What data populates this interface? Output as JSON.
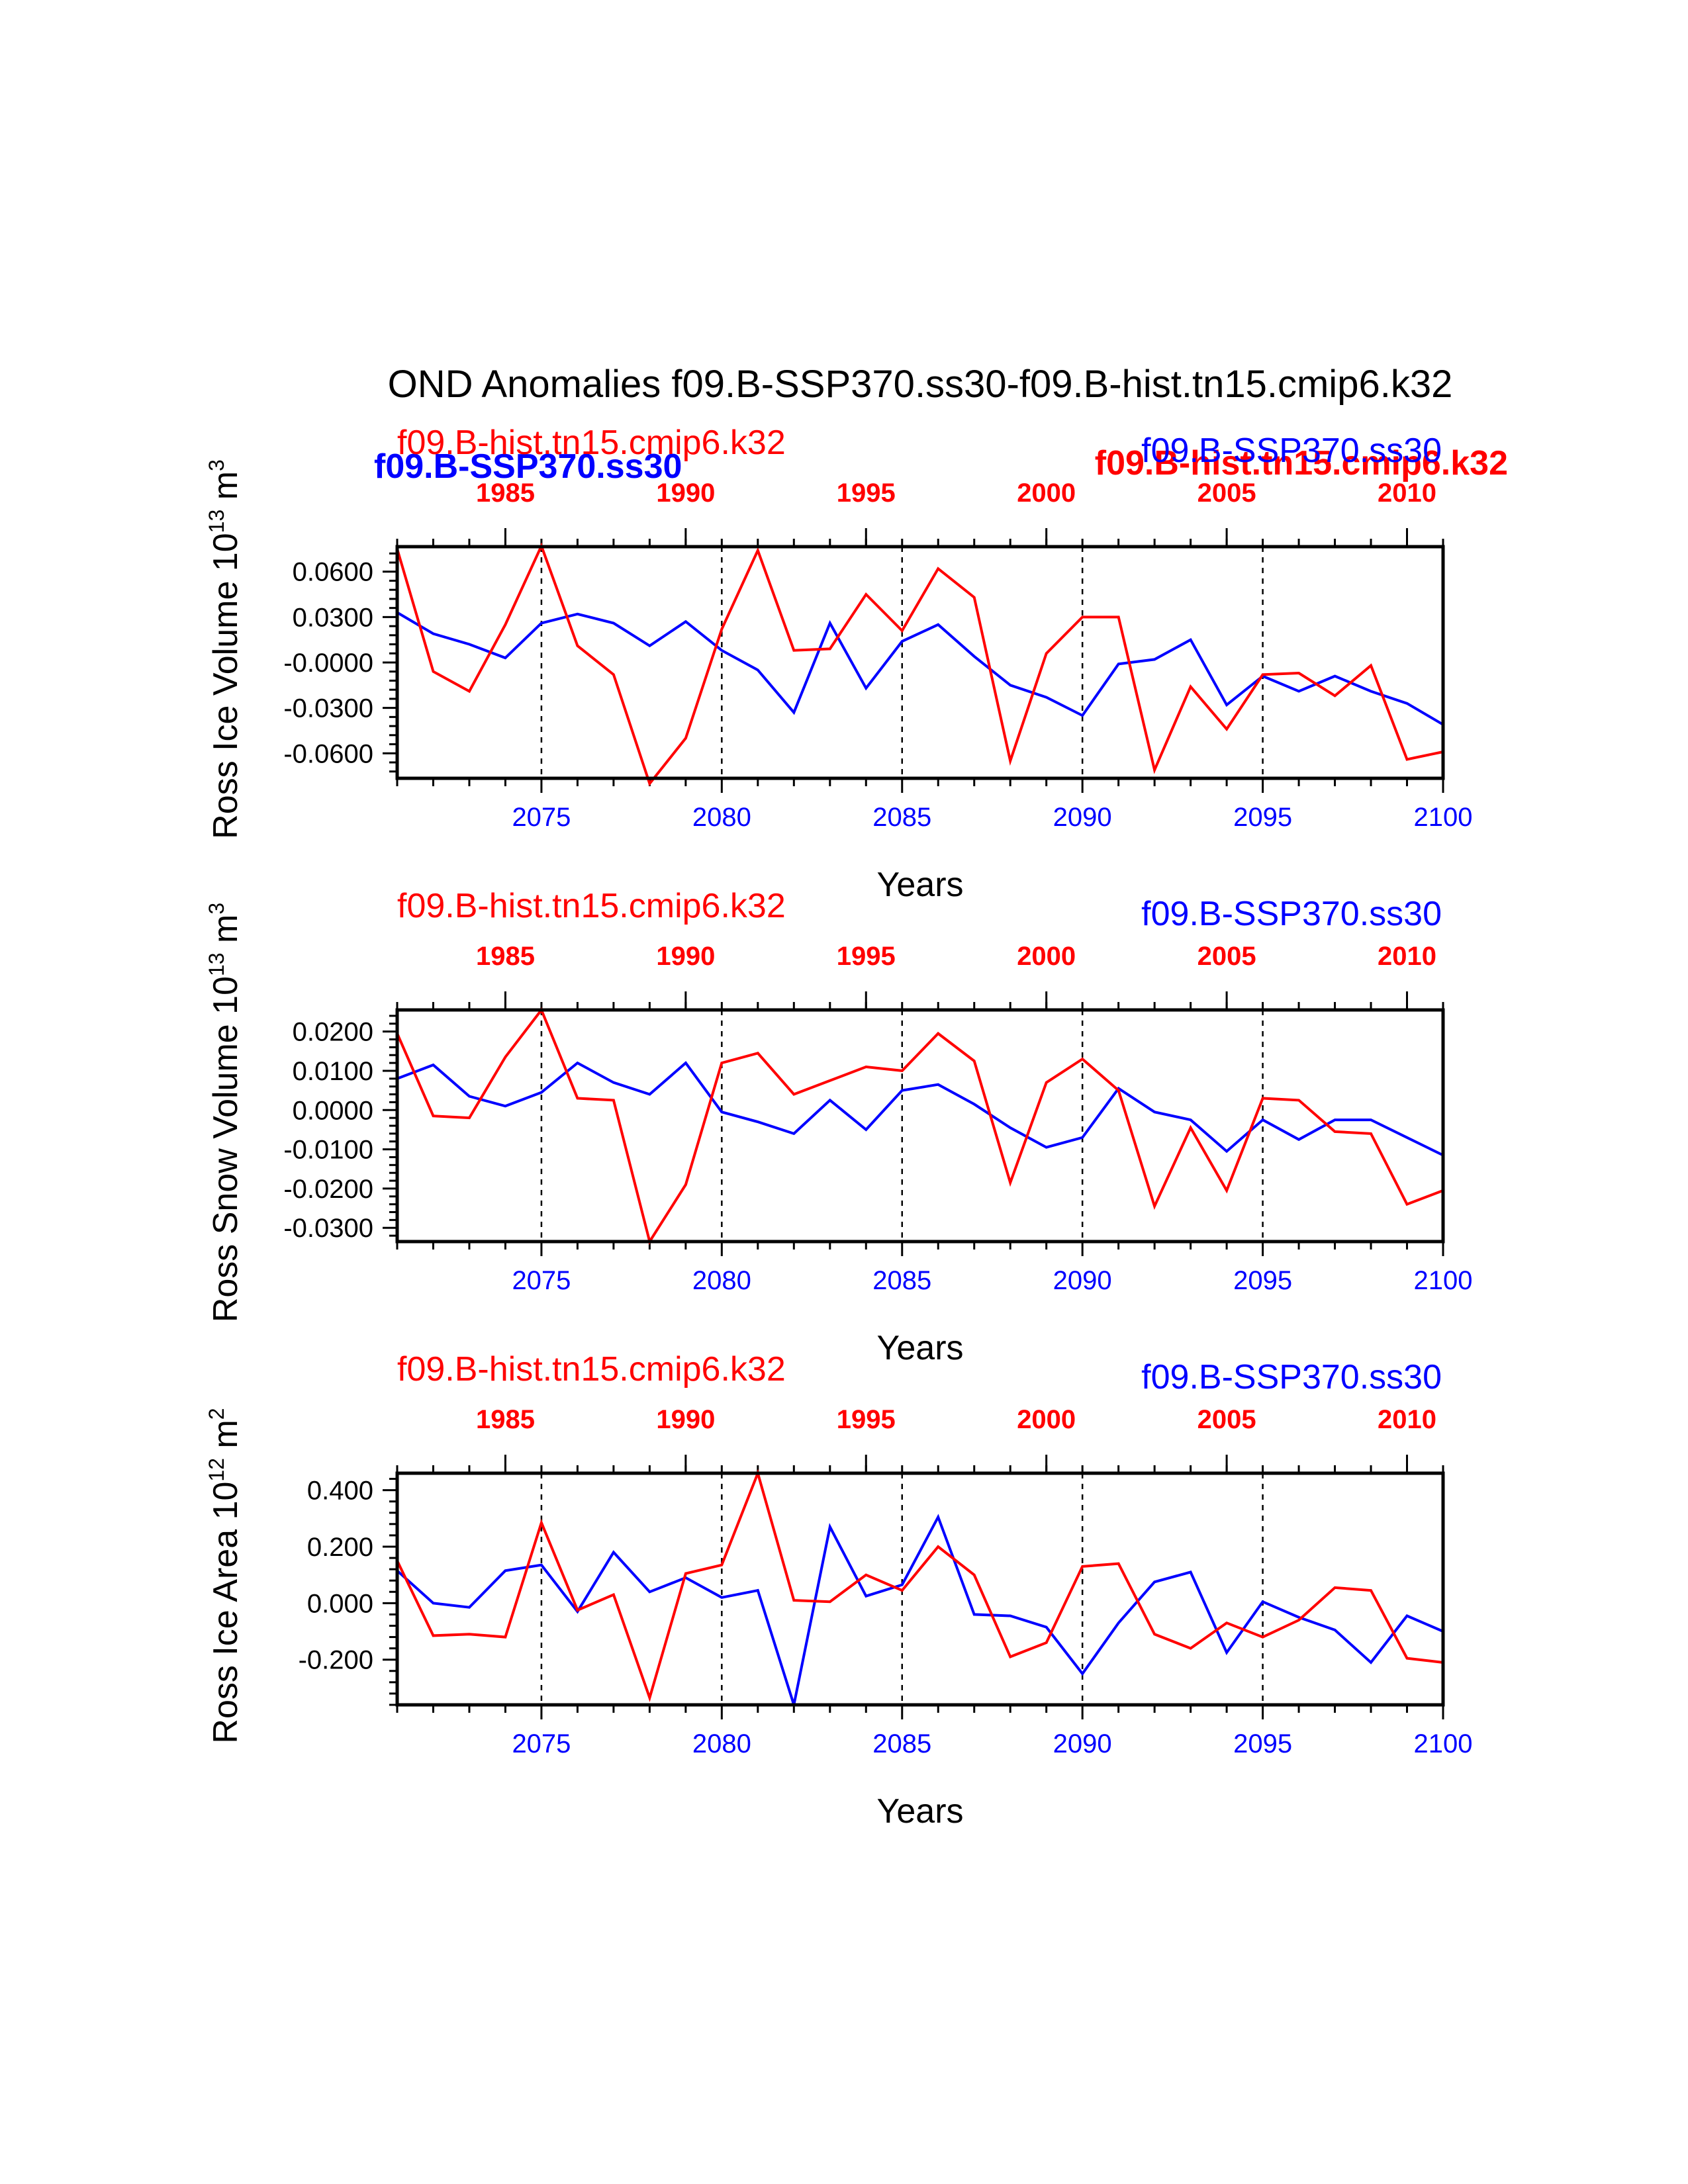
{
  "figure": {
    "title": "OND Anomalies f09.B-SSP370.ss30-f09.B-hist.tn15.cmip6.k32",
    "xlabel": "Years",
    "overlap_labels": {
      "left_blue": "f09.B-SSP370.ss30",
      "right_red": "f09.B-hist.tn15.cmip6.k32"
    },
    "colors": {
      "ssp370": "#0000ff",
      "hist": "#ff0000"
    }
  },
  "chart_data": [
    {
      "type": "line",
      "ylabel": "Ross Ice Volume 10^13 m^3",
      "ylabel_main": "Ross Ice Volume 10",
      "ylabel_exp": "13",
      "ylabel_unit": " m",
      "ylabel_unit_exp": "3",
      "left_label": "f09.B-hist.tn15.cmip6.k32",
      "right_label": "f09.B-SSP370.ss30",
      "ylim": [
        -0.0765,
        0.0765
      ],
      "yticks": [
        0.06,
        0.03,
        0.0,
        -0.03,
        -0.06
      ],
      "ytick_labels": [
        "0.0600",
        "0.0300",
        "-0.0000",
        "-0.0300",
        "-0.0600"
      ],
      "xlim": [
        2071,
        2100
      ],
      "xticks": [
        2075,
        2080,
        2085,
        2090,
        2095,
        2100
      ],
      "xticks_top": [
        1985,
        1990,
        1995,
        2000,
        2005,
        2010
      ],
      "vlines": [
        2075,
        2080,
        2085,
        2090,
        2095
      ],
      "series": [
        {
          "name": "f09.B-SSP370.ss30",
          "color": "#0000ff",
          "x": [
            2071,
            2072,
            2073,
            2074,
            2075,
            2076,
            2077,
            2078,
            2079,
            2080,
            2081,
            2082,
            2083,
            2084,
            2085,
            2086,
            2087,
            2088,
            2089,
            2090,
            2091,
            2092,
            2093,
            2094,
            2095,
            2096,
            2097,
            2098,
            2099,
            2100
          ],
          "values": [
            0.033,
            0.019,
            0.012,
            0.003,
            0.026,
            0.032,
            0.026,
            0.011,
            0.027,
            0.008,
            -0.005,
            -0.033,
            0.026,
            -0.017,
            0.014,
            0.025,
            0.004,
            -0.015,
            -0.023,
            -0.035,
            -0.001,
            0.002,
            0.015,
            -0.028,
            -0.009,
            -0.019,
            -0.009,
            -0.019,
            -0.027,
            -0.041
          ]
        },
        {
          "name": "f09.B-hist.tn15.cmip6.k32",
          "color": "#ff0000",
          "x": [
            2071,
            2072,
            2073,
            2074,
            2075,
            2076,
            2077,
            2078,
            2079,
            2080,
            2081,
            2082,
            2083,
            2084,
            2085,
            2086,
            2087,
            2088,
            2089,
            2090,
            2091,
            2092,
            2093,
            2094,
            2095,
            2096,
            2097,
            2098,
            2099,
            2100
          ],
          "values": [
            0.075,
            -0.006,
            -0.019,
            0.025,
            0.077,
            0.011,
            -0.008,
            -0.08,
            -0.05,
            0.022,
            0.074,
            0.008,
            0.009,
            0.045,
            0.021,
            0.062,
            0.043,
            -0.065,
            0.006,
            0.03,
            0.03,
            -0.071,
            -0.016,
            -0.044,
            -0.008,
            -0.007,
            -0.022,
            -0.002,
            -0.064,
            -0.059
          ]
        }
      ]
    },
    {
      "type": "line",
      "ylabel": "Ross Snow Volume 10^13 m^3",
      "ylabel_main": "Ross Snow Volume 10",
      "ylabel_exp": "13",
      "ylabel_unit": " m",
      "ylabel_unit_exp": "3",
      "left_label": "f09.B-hist.tn15.cmip6.k32",
      "right_label": "f09.B-SSP370.ss30",
      "ylim": [
        -0.0335,
        0.0255
      ],
      "yticks": [
        0.02,
        0.01,
        0.0,
        -0.01,
        -0.02,
        -0.03
      ],
      "ytick_labels": [
        "0.0200",
        "0.0100",
        "0.0000",
        "-0.0100",
        "-0.0200",
        "-0.0300"
      ],
      "xlim": [
        2071,
        2100
      ],
      "xticks": [
        2075,
        2080,
        2085,
        2090,
        2095,
        2100
      ],
      "xticks_top": [
        1985,
        1990,
        1995,
        2000,
        2005,
        2010
      ],
      "vlines": [
        2075,
        2080,
        2085,
        2090,
        2095
      ],
      "series": [
        {
          "name": "f09.B-SSP370.ss30",
          "color": "#0000ff",
          "x": [
            2071,
            2072,
            2073,
            2074,
            2075,
            2076,
            2077,
            2078,
            2079,
            2080,
            2081,
            2082,
            2083,
            2084,
            2085,
            2086,
            2087,
            2088,
            2089,
            2090,
            2091,
            2092,
            2093,
            2094,
            2095,
            2096,
            2097,
            2098,
            2099,
            2100
          ],
          "values": [
            0.008,
            0.0115,
            0.0035,
            0.001,
            0.0045,
            0.012,
            0.007,
            0.004,
            0.012,
            -0.0005,
            -0.003,
            -0.006,
            0.0025,
            -0.005,
            0.005,
            0.0065,
            0.0015,
            -0.0045,
            -0.0095,
            -0.007,
            0.0055,
            -0.0005,
            -0.0025,
            -0.0105,
            -0.0025,
            -0.0075,
            -0.0025,
            -0.0025,
            -0.007,
            -0.0115
          ]
        },
        {
          "name": "f09.B-hist.tn15.cmip6.k32",
          "color": "#ff0000",
          "x": [
            2071,
            2072,
            2073,
            2074,
            2075,
            2076,
            2077,
            2078,
            2079,
            2080,
            2081,
            2082,
            2083,
            2084,
            2085,
            2086,
            2087,
            2088,
            2089,
            2090,
            2091,
            2092,
            2093,
            2094,
            2095,
            2096,
            2097,
            2098,
            2099,
            2100
          ],
          "values": [
            0.0195,
            -0.0015,
            -0.002,
            0.0135,
            0.0255,
            0.003,
            0.0025,
            -0.0335,
            -0.019,
            0.012,
            0.0145,
            0.004,
            0.0075,
            0.011,
            0.01,
            0.0195,
            0.0125,
            -0.0185,
            0.007,
            0.013,
            0.005,
            -0.0245,
            -0.0045,
            -0.0205,
            0.003,
            0.0025,
            -0.0055,
            -0.006,
            -0.024,
            -0.0205
          ]
        }
      ]
    },
    {
      "type": "line",
      "ylabel": "Ross Ice Area 10^12 m^2",
      "ylabel_main": "Ross Ice Area 10",
      "ylabel_exp": "12",
      "ylabel_unit": " m",
      "ylabel_unit_exp": "2",
      "left_label": "f09.B-hist.tn15.cmip6.k32",
      "right_label": "f09.B-SSP370.ss30",
      "ylim": [
        -0.36,
        0.46
      ],
      "yticks": [
        0.4,
        0.2,
        0.0,
        -0.2
      ],
      "ytick_labels": [
        "0.400",
        "0.200",
        "0.000",
        "-0.200"
      ],
      "xlim": [
        2071,
        2100
      ],
      "xticks": [
        2075,
        2080,
        2085,
        2090,
        2095,
        2100
      ],
      "xticks_top": [
        1985,
        1990,
        1995,
        2000,
        2005,
        2010
      ],
      "vlines": [
        2075,
        2080,
        2085,
        2090,
        2095
      ],
      "series": [
        {
          "name": "f09.B-SSP370.ss30",
          "color": "#0000ff",
          "x": [
            2071,
            2072,
            2073,
            2074,
            2075,
            2076,
            2077,
            2078,
            2079,
            2080,
            2081,
            2082,
            2083,
            2084,
            2085,
            2086,
            2087,
            2088,
            2089,
            2090,
            2091,
            2092,
            2093,
            2094,
            2095,
            2096,
            2097,
            2098,
            2099,
            2100
          ],
          "values": [
            0.115,
            0.0,
            -0.015,
            0.115,
            0.135,
            -0.03,
            0.18,
            0.04,
            0.09,
            0.02,
            0.045,
            -0.36,
            0.27,
            0.025,
            0.065,
            0.305,
            -0.04,
            -0.045,
            -0.085,
            -0.25,
            -0.07,
            0.075,
            0.11,
            -0.175,
            0.005,
            -0.05,
            -0.095,
            -0.21,
            -0.045,
            -0.1
          ]
        },
        {
          "name": "f09.B-hist.tn15.cmip6.k32",
          "color": "#ff0000",
          "x": [
            2071,
            2072,
            2073,
            2074,
            2075,
            2076,
            2077,
            2078,
            2079,
            2080,
            2081,
            2082,
            2083,
            2084,
            2085,
            2086,
            2087,
            2088,
            2089,
            2090,
            2091,
            2092,
            2093,
            2094,
            2095,
            2096,
            2097,
            2098,
            2099,
            2100
          ],
          "values": [
            0.15,
            -0.115,
            -0.11,
            -0.12,
            0.285,
            -0.025,
            0.03,
            -0.335,
            0.105,
            0.135,
            0.46,
            0.01,
            0.005,
            0.1,
            0.045,
            0.2,
            0.1,
            -0.19,
            -0.14,
            0.13,
            0.14,
            -0.11,
            -0.16,
            -0.07,
            -0.12,
            -0.06,
            0.055,
            0.045,
            -0.195,
            -0.21
          ]
        }
      ]
    }
  ]
}
